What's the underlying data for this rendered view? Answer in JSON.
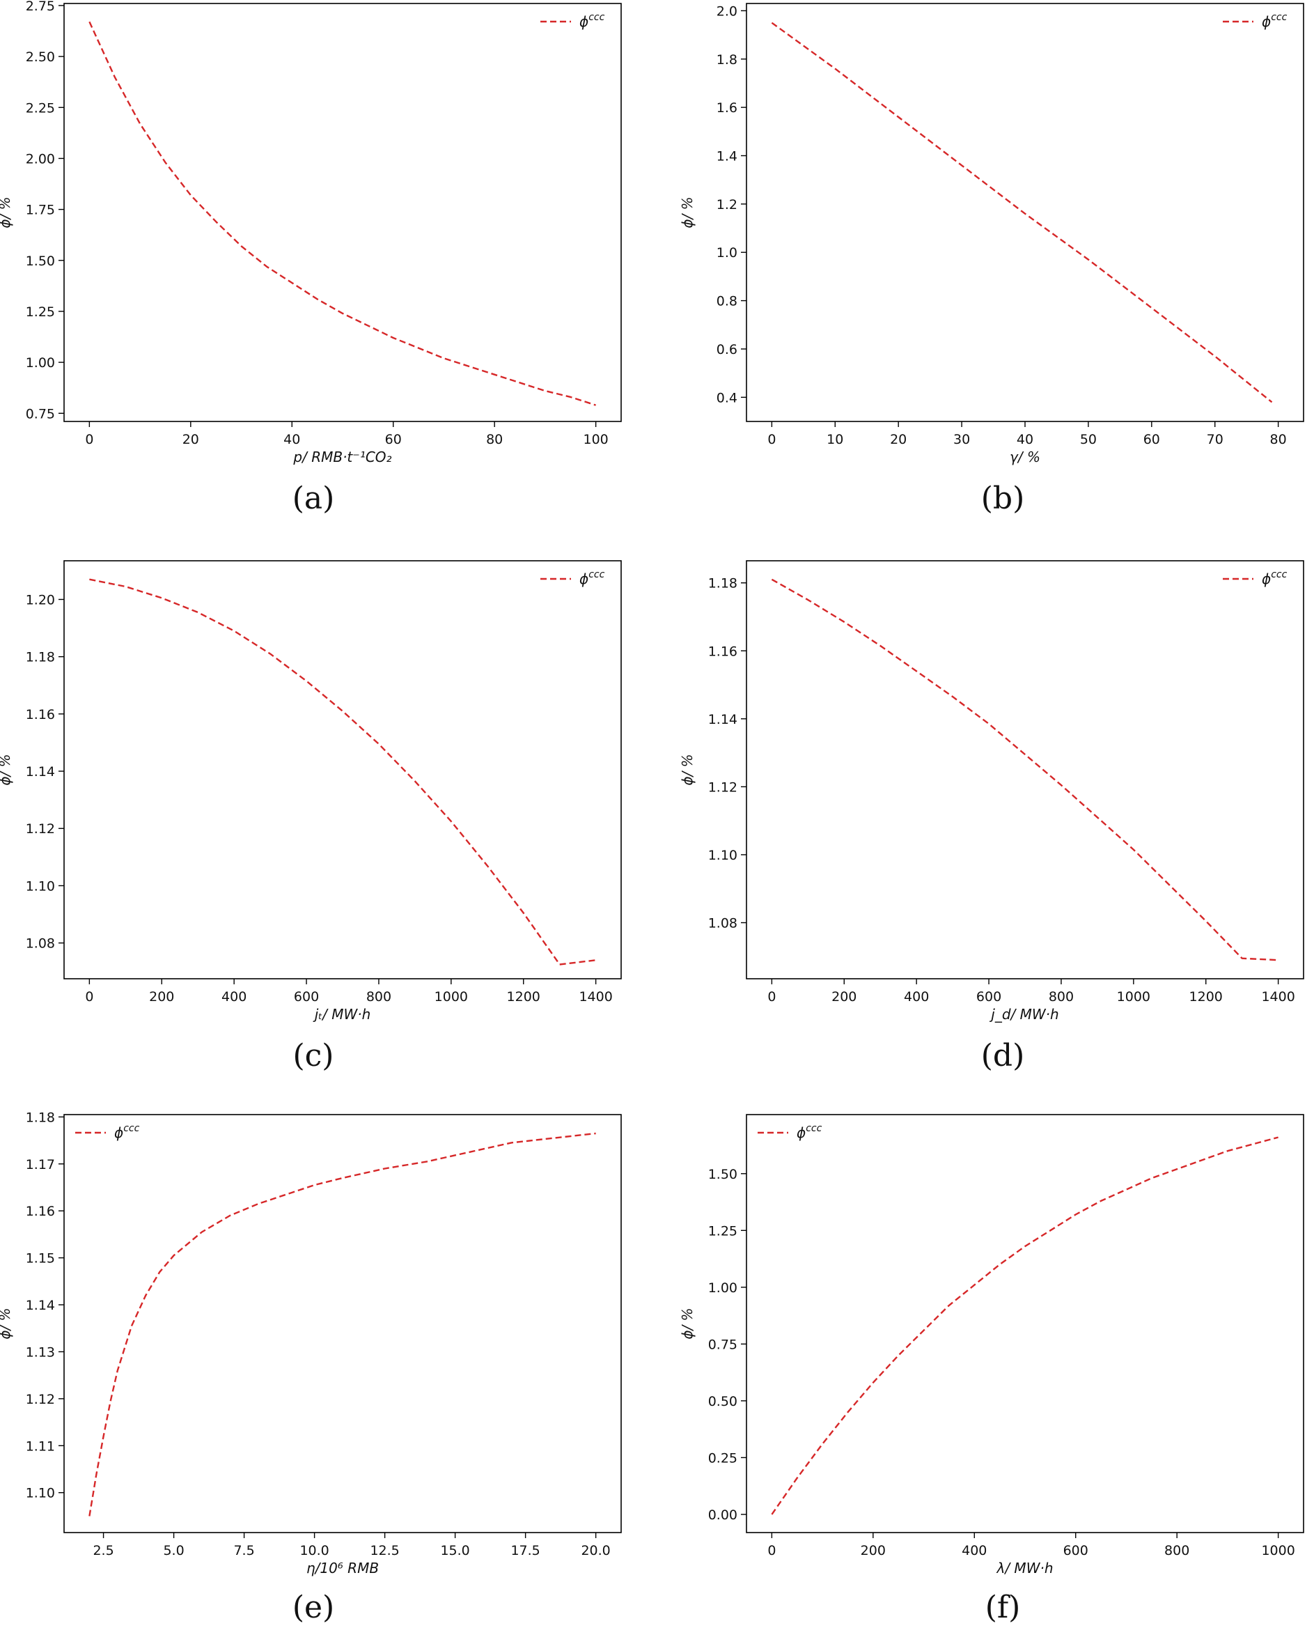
{
  "colors": {
    "series": "#d62728",
    "axis": "#000000",
    "text": "#111111"
  },
  "chart_data": [
    {
      "id": "a",
      "type": "line",
      "caption": "(a)",
      "xlabel": "p/ RMB·t⁻¹CO₂",
      "ylabel": "ϕ/ %",
      "xlim": [
        -5,
        105
      ],
      "ylim": [
        0.71,
        2.76
      ],
      "xticks": [
        0,
        20,
        40,
        60,
        80,
        100
      ],
      "xtick_labels": [
        "0",
        "20",
        "40",
        "60",
        "80",
        "100"
      ],
      "yticks": [
        0.75,
        1.0,
        1.25,
        1.5,
        1.75,
        2.0,
        2.25,
        2.5,
        2.75
      ],
      "ytick_labels": [
        "0.75",
        "1.00",
        "1.25",
        "1.50",
        "1.75",
        "2.00",
        "2.25",
        "2.50",
        "2.75"
      ],
      "legend": {
        "placement": "top-right",
        "label": "ϕ",
        "sup": "ccc"
      },
      "series": [
        {
          "name": "ϕccc",
          "x": [
            0,
            5,
            10,
            15,
            20,
            25,
            30,
            35,
            40,
            45,
            50,
            55,
            60,
            65,
            70,
            75,
            80,
            85,
            90,
            95,
            100
          ],
          "y": [
            2.67,
            2.4,
            2.17,
            1.98,
            1.82,
            1.69,
            1.57,
            1.47,
            1.39,
            1.31,
            1.24,
            1.18,
            1.12,
            1.07,
            1.02,
            0.98,
            0.94,
            0.9,
            0.86,
            0.83,
            0.79
          ]
        }
      ]
    },
    {
      "id": "b",
      "type": "line",
      "caption": "(b)",
      "xlabel": "γ/ %",
      "ylabel": "ϕ/ %",
      "xlim": [
        -4,
        84
      ],
      "ylim": [
        0.3,
        2.03
      ],
      "xticks": [
        0,
        10,
        20,
        30,
        40,
        50,
        60,
        70,
        80
      ],
      "xtick_labels": [
        "0",
        "10",
        "20",
        "30",
        "40",
        "50",
        "60",
        "70",
        "80"
      ],
      "yticks": [
        0.4,
        0.6,
        0.8,
        1.0,
        1.2,
        1.4,
        1.6,
        1.8,
        2.0
      ],
      "ytick_labels": [
        "0.4",
        "0.6",
        "0.8",
        "1.0",
        "1.2",
        "1.4",
        "1.6",
        "1.8",
        "2.0"
      ],
      "legend": {
        "placement": "top-right",
        "label": "ϕ",
        "sup": "ccc"
      },
      "series": [
        {
          "name": "ϕccc",
          "x": [
            0,
            10,
            20,
            30,
            40,
            50,
            60,
            70,
            79
          ],
          "y": [
            1.95,
            1.76,
            1.56,
            1.36,
            1.16,
            0.97,
            0.77,
            0.57,
            0.38
          ]
        }
      ]
    },
    {
      "id": "c",
      "type": "line",
      "caption": "(c)",
      "xlabel": "jₜ/ MW·h",
      "ylabel": "ϕ/ %",
      "xlim": [
        -70,
        1470
      ],
      "ylim": [
        1.0675,
        1.2135
      ],
      "xticks": [
        0,
        200,
        400,
        600,
        800,
        1000,
        1200,
        1400
      ],
      "xtick_labels": [
        "0",
        "200",
        "400",
        "600",
        "800",
        "1000",
        "1200",
        "1400"
      ],
      "yticks": [
        1.08,
        1.1,
        1.12,
        1.14,
        1.16,
        1.18,
        1.2
      ],
      "ytick_labels": [
        "1.08",
        "1.10",
        "1.12",
        "1.14",
        "1.16",
        "1.18",
        "1.20"
      ],
      "legend": {
        "placement": "top-right",
        "label": "ϕ",
        "sup": "ccc"
      },
      "series": [
        {
          "name": "ϕccc",
          "x": [
            0,
            100,
            200,
            300,
            400,
            500,
            600,
            700,
            800,
            900,
            1000,
            1100,
            1200,
            1300,
            1400
          ],
          "y": [
            1.207,
            1.2045,
            1.2005,
            1.1955,
            1.189,
            1.181,
            1.1715,
            1.161,
            1.1495,
            1.1365,
            1.1225,
            1.107,
            1.0905,
            1.0725,
            1.074
          ]
        }
      ]
    },
    {
      "id": "d",
      "type": "line",
      "caption": "(d)",
      "xlabel": "j_d/ MW·h",
      "ylabel": "ϕ/ %",
      "xlim": [
        -70,
        1470
      ],
      "ylim": [
        1.0635,
        1.1865
      ],
      "xticks": [
        0,
        200,
        400,
        600,
        800,
        1000,
        1200,
        1400
      ],
      "xtick_labels": [
        "0",
        "200",
        "400",
        "600",
        "800",
        "1000",
        "1200",
        "1400"
      ],
      "yticks": [
        1.08,
        1.1,
        1.12,
        1.14,
        1.16,
        1.18
      ],
      "ytick_labels": [
        "1.08",
        "1.10",
        "1.12",
        "1.14",
        "1.16",
        "1.18"
      ],
      "legend": {
        "placement": "top-right",
        "label": "ϕ",
        "sup": "ccc"
      },
      "series": [
        {
          "name": "ϕccc",
          "x": [
            0,
            100,
            200,
            300,
            400,
            500,
            600,
            700,
            800,
            900,
            1000,
            1100,
            1200,
            1300,
            1400
          ],
          "y": [
            1.181,
            1.175,
            1.1685,
            1.1615,
            1.154,
            1.1465,
            1.1385,
            1.1295,
            1.1205,
            1.111,
            1.1015,
            1.091,
            1.0805,
            1.0695,
            1.069
          ]
        }
      ]
    },
    {
      "id": "e",
      "type": "line",
      "caption": "(e)",
      "xlabel": "η/10⁶ RMB",
      "ylabel": "ϕ/ %",
      "xlim": [
        1.1,
        20.9
      ],
      "ylim": [
        1.0915,
        1.1805
      ],
      "xticks": [
        2.5,
        5.0,
        7.5,
        10.0,
        12.5,
        15.0,
        17.5,
        20.0
      ],
      "xtick_labels": [
        "2.5",
        "5.0",
        "7.5",
        "10.0",
        "12.5",
        "15.0",
        "17.5",
        "20.0"
      ],
      "yticks": [
        1.1,
        1.11,
        1.12,
        1.13,
        1.14,
        1.15,
        1.16,
        1.17,
        1.18
      ],
      "ytick_labels": [
        "1.10",
        "1.11",
        "1.12",
        "1.13",
        "1.14",
        "1.15",
        "1.16",
        "1.17",
        "1.18"
      ],
      "legend": {
        "placement": "top-left",
        "label": "ϕ",
        "sup": "ccc"
      },
      "series": [
        {
          "name": "ϕccc",
          "x": [
            2.0,
            2.25,
            2.5,
            2.75,
            3.0,
            3.5,
            4.0,
            4.5,
            5.0,
            6.0,
            7.0,
            8.0,
            9.0,
            10.0,
            11.0,
            12.5,
            14.0,
            15.5,
            17.0,
            18.5,
            20.0
          ],
          "y": [
            1.095,
            1.104,
            1.112,
            1.1195,
            1.126,
            1.1355,
            1.142,
            1.147,
            1.1505,
            1.1555,
            1.159,
            1.1615,
            1.1635,
            1.1655,
            1.167,
            1.169,
            1.1705,
            1.1725,
            1.1745,
            1.1755,
            1.1765
          ]
        }
      ]
    },
    {
      "id": "f",
      "type": "line",
      "caption": "(f)",
      "xlabel": "λ/ MW·h",
      "ylabel": "ϕ/ %",
      "xlim": [
        -50,
        1050
      ],
      "ylim": [
        -0.08,
        1.76
      ],
      "xticks": [
        0,
        200,
        400,
        600,
        800,
        1000
      ],
      "xtick_labels": [
        "0",
        "200",
        "400",
        "600",
        "800",
        "1000"
      ],
      "yticks": [
        0.0,
        0.25,
        0.5,
        0.75,
        1.0,
        1.25,
        1.5
      ],
      "ytick_labels": [
        "0.00",
        "0.25",
        "0.50",
        "0.75",
        "1.00",
        "1.25",
        "1.50"
      ],
      "legend": {
        "placement": "top-left",
        "label": "ϕ",
        "sup": "ccc"
      },
      "series": [
        {
          "name": "ϕccc",
          "x": [
            0,
            50,
            100,
            150,
            200,
            250,
            300,
            350,
            400,
            450,
            500,
            550,
            600,
            650,
            700,
            750,
            800,
            850,
            900,
            950,
            1000
          ],
          "y": [
            0.0,
            0.16,
            0.31,
            0.45,
            0.58,
            0.7,
            0.81,
            0.92,
            1.01,
            1.1,
            1.18,
            1.25,
            1.32,
            1.38,
            1.43,
            1.48,
            1.52,
            1.56,
            1.6,
            1.63,
            1.66
          ]
        }
      ]
    }
  ]
}
